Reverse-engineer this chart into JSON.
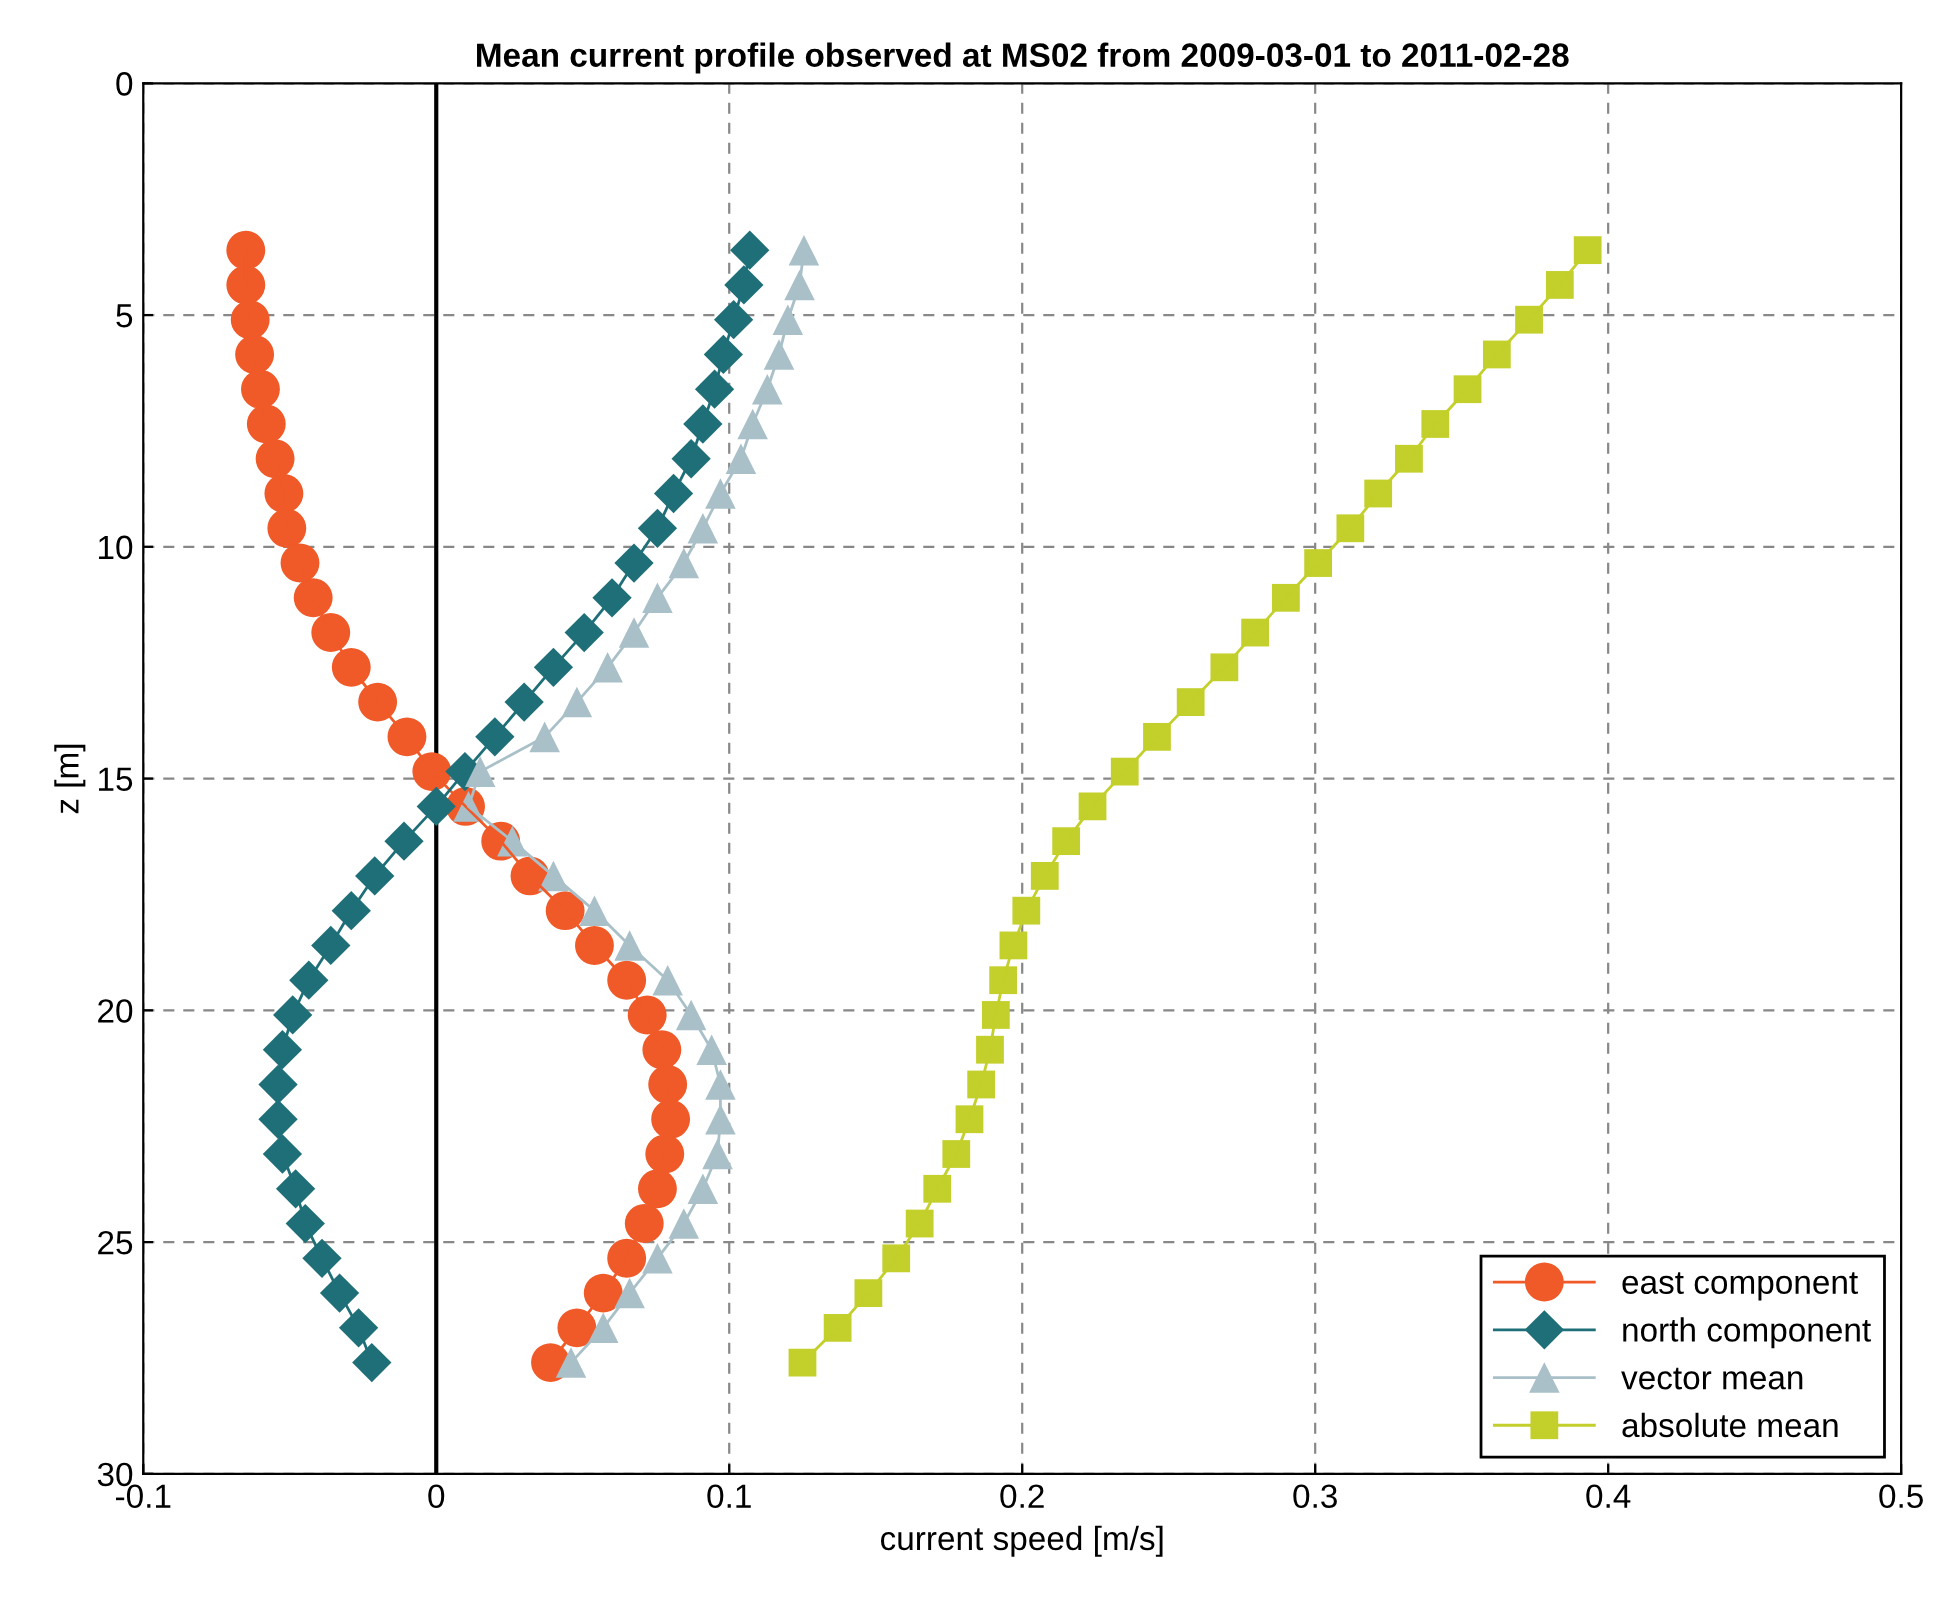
{
  "chart_data": {
    "type": "line",
    "title": "Mean current profile observed at MS02 from 2009-03-01 to 2011-02-28",
    "xlabel": "current speed [m/s]",
    "ylabel": "z [m]",
    "series": [
      {
        "name": "east component",
        "color": "#f05a28",
        "marker": "circle",
        "x": [
          -0.065,
          -0.065,
          -0.0635,
          -0.062,
          -0.06,
          -0.058,
          -0.055,
          -0.052,
          -0.051,
          -0.0465,
          -0.042,
          -0.036,
          -0.029,
          -0.02,
          -0.01,
          -0.0015,
          0.01,
          0.022,
          0.032,
          0.044,
          0.054,
          0.065,
          0.072,
          0.077,
          0.079,
          0.08,
          0.078,
          0.0755,
          0.071,
          0.065,
          0.057,
          0.048,
          0.039
        ],
        "values": [
          3.6,
          4.35,
          5.1,
          5.85,
          6.6,
          7.35,
          8.1,
          8.85,
          9.6,
          10.35,
          11.1,
          11.85,
          12.6,
          13.35,
          14.1,
          14.85,
          15.6,
          16.35,
          17.1,
          17.85,
          18.6,
          19.35,
          20.1,
          20.85,
          21.6,
          22.35,
          23.1,
          23.85,
          24.6,
          25.35,
          26.1,
          26.85,
          27.6
        ]
      },
      {
        "name": "north component",
        "color": "#1f6f78",
        "marker": "diamond",
        "x": [
          0.107,
          0.105,
          0.1015,
          0.098,
          0.095,
          0.091,
          0.087,
          0.081,
          0.0755,
          0.0675,
          0.06,
          0.0505,
          0.04,
          0.03,
          0.02,
          0.0098,
          0.0,
          -0.011,
          -0.021,
          -0.029,
          -0.036,
          -0.0435,
          -0.049,
          -0.0525,
          -0.054,
          -0.054,
          -0.0525,
          -0.048,
          -0.0447,
          -0.039,
          -0.033,
          -0.0265,
          -0.022
        ],
        "values": [
          3.6,
          4.35,
          5.1,
          5.85,
          6.6,
          7.35,
          8.1,
          8.85,
          9.6,
          10.35,
          11.1,
          11.85,
          12.6,
          13.35,
          14.1,
          14.85,
          15.6,
          16.35,
          17.1,
          17.85,
          18.6,
          19.35,
          20.1,
          20.85,
          21.6,
          22.35,
          23.1,
          23.85,
          24.6,
          25.35,
          26.1,
          26.85,
          27.6
        ]
      },
      {
        "name": "vector mean",
        "color": "#a9c0c9",
        "marker": "triangle",
        "x": [
          0.1255,
          0.124,
          0.12,
          0.117,
          0.113,
          0.108,
          0.104,
          0.097,
          0.091,
          0.0845,
          0.0755,
          0.0675,
          0.0585,
          0.048,
          0.037,
          0.015,
          0.011,
          0.026,
          0.04,
          0.054,
          0.066,
          0.079,
          0.087,
          0.094,
          0.097,
          0.097,
          0.096,
          0.091,
          0.0845,
          0.0755,
          0.066,
          0.057,
          0.046
        ],
        "values": [
          3.6,
          4.35,
          5.1,
          5.85,
          6.6,
          7.35,
          8.1,
          8.85,
          9.6,
          10.35,
          11.1,
          11.85,
          12.6,
          13.35,
          14.1,
          14.85,
          15.6,
          16.35,
          17.1,
          17.85,
          18.6,
          19.35,
          20.1,
          20.85,
          21.6,
          22.35,
          23.1,
          23.85,
          24.6,
          25.35,
          26.1,
          26.85,
          27.6
        ]
      },
      {
        "name": "absolute mean",
        "color": "#c3cf2a",
        "marker": "square",
        "x": [
          0.393,
          0.3835,
          0.373,
          0.362,
          0.352,
          0.341,
          0.332,
          0.3215,
          0.312,
          0.301,
          0.29,
          0.2795,
          0.269,
          0.2575,
          0.246,
          0.235,
          0.224,
          0.215,
          0.2077,
          0.2014,
          0.197,
          0.1935,
          0.191,
          0.189,
          0.186,
          0.182,
          0.1775,
          0.171,
          0.165,
          0.157,
          0.1475,
          0.137,
          0.125
        ],
        "values": [
          3.6,
          4.35,
          5.1,
          5.85,
          6.6,
          7.35,
          8.1,
          8.85,
          9.6,
          10.35,
          11.1,
          11.85,
          12.6,
          13.35,
          14.1,
          14.85,
          15.6,
          16.35,
          17.1,
          17.85,
          18.6,
          19.35,
          20.1,
          20.85,
          21.6,
          22.35,
          23.1,
          23.85,
          24.6,
          25.35,
          26.1,
          26.85,
          27.6
        ]
      }
    ],
    "xlim": [
      -0.1,
      0.5
    ],
    "xticks": [
      -0.1,
      0,
      0.1,
      0.2,
      0.3,
      0.4,
      0.5
    ],
    "ylim": [
      30,
      0
    ],
    "yticks": [
      0,
      5,
      10,
      15,
      20,
      25,
      30
    ],
    "ref_lines": [
      {
        "axis": "x",
        "value": 0,
        "color": "#000000",
        "line_style": "solid"
      }
    ],
    "grid": true,
    "legend": "bottom right",
    "line_style": "solid"
  }
}
